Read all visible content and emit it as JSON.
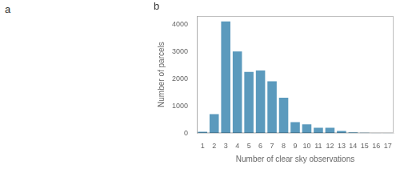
{
  "chart_data": {
    "type": "bar",
    "categories": [
      1,
      2,
      3,
      4,
      5,
      6,
      7,
      8,
      9,
      10,
      11,
      12,
      13,
      14,
      15,
      16,
      17
    ],
    "values": [
      50,
      700,
      4100,
      3000,
      2250,
      2300,
      1900,
      1300,
      400,
      320,
      200,
      200,
      80,
      30,
      15,
      5,
      5
    ],
    "color": "#5b9abd",
    "x_label": "Number of clear sky observations",
    "y_label": "Number of parcels",
    "annotations": [
      "a",
      "b"
    ],
    "ylim": [
      0,
      4300
    ],
    "yticks": [
      0,
      1000,
      2000,
      3000,
      4000
    ],
    "grid": false
  }
}
